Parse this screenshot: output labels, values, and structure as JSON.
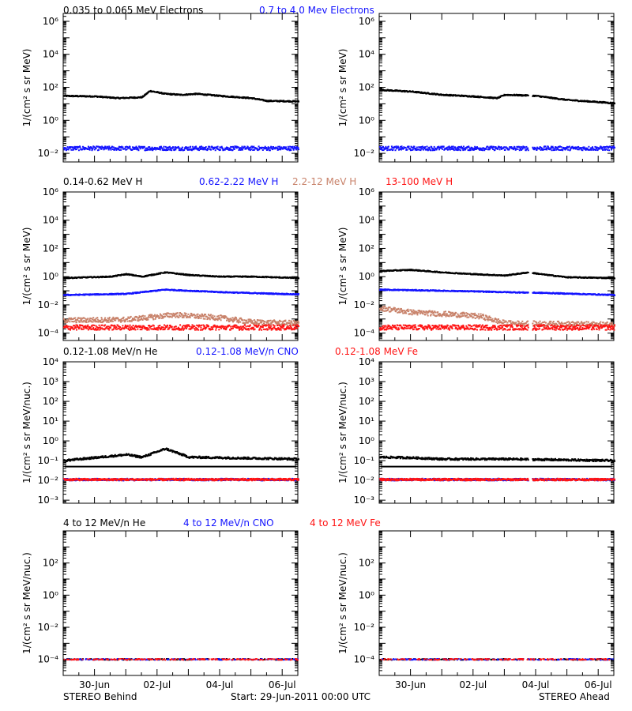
{
  "colors": {
    "black": "#000000",
    "blue": "#1414ff",
    "tan": "#c8826a",
    "red": "#ff1414"
  },
  "footer": {
    "left": "STEREO Behind",
    "center": "Start: 29-Jun-2011 00:00 UTC",
    "right": "STEREO Ahead"
  },
  "time_axis": {
    "start": "2011-06-29 00:00",
    "end": "2011-07-06 12:00",
    "ticks": [
      {
        "date": "2011-06-30",
        "label": "30-Jun"
      },
      {
        "date": "2011-07-02",
        "label": "02-Jul"
      },
      {
        "date": "2011-07-04",
        "label": "04-Jul"
      },
      {
        "date": "2011-07-06",
        "label": "06-Jul"
      }
    ]
  },
  "rows": [
    {
      "legend": [
        {
          "label": "0.035 to 0.065 MeV Electrons",
          "color": "black"
        },
        {
          "label": "0.7 to 4.0 Mev Electrons",
          "color": "blue"
        }
      ]
    },
    {
      "legend": [
        {
          "label": "0.14-0.62 MeV H",
          "color": "black"
        },
        {
          "label": "0.62-2.22 MeV H",
          "color": "blue"
        },
        {
          "label": "2.2-12 MeV H",
          "color": "tan"
        },
        {
          "label": "13-100 MeV H",
          "color": "red"
        }
      ]
    },
    {
      "legend": [
        {
          "label": "0.12-1.08 MeV/n He",
          "color": "black"
        },
        {
          "label": "0.12-1.08 MeV/n CNO",
          "color": "blue"
        },
        {
          "label": "0.12-1.08 MeV Fe",
          "color": "red"
        }
      ]
    },
    {
      "legend": [
        {
          "label": "4 to 12 MeV/n He",
          "color": "black"
        },
        {
          "label": "4 to 12 MeV/n CNO",
          "color": "blue"
        },
        {
          "label": "4 to 12 MeV Fe",
          "color": "red"
        }
      ]
    }
  ],
  "chart_data": [
    {
      "type": "scatter",
      "row": 0,
      "spacecraft": "STEREO Behind",
      "ylabel": "1/(cm² s sr MeV)",
      "yscale": "log",
      "ylim": [
        0.003,
        3000000
      ],
      "yticks": [
        {
          "value": 1000000,
          "label": "10⁶"
        },
        {
          "value": 10000,
          "label": "10⁴"
        },
        {
          "value": 100,
          "label": "10²"
        },
        {
          "value": 1,
          "label": "10⁰"
        },
        {
          "value": 0.01,
          "label": "10⁻²"
        }
      ],
      "series": [
        {
          "color": "black",
          "points": [
            [
              "2011-06-29 00:00",
              30
            ],
            [
              "2011-06-30 00:00",
              28
            ],
            [
              "2011-06-30 18:00",
              22
            ],
            [
              "2011-07-01 12:00",
              25
            ],
            [
              "2011-07-01 18:00",
              60
            ],
            [
              "2011-07-02 06:00",
              40
            ],
            [
              "2011-07-02 18:00",
              35
            ],
            [
              "2011-07-03 06:00",
              40
            ],
            [
              "2011-07-04 00:00",
              30
            ],
            [
              "2011-07-05 00:00",
              22
            ],
            [
              "2011-07-05 12:00",
              15
            ],
            [
              "2011-07-06 12:00",
              14
            ]
          ]
        },
        {
          "color": "blue",
          "points": [
            [
              "2011-06-29 00:00",
              0.02
            ],
            [
              "2011-07-02 00:00",
              0.02
            ],
            [
              "2011-07-06 12:00",
              0.02
            ]
          ]
        }
      ]
    },
    {
      "type": "scatter",
      "row": 0,
      "spacecraft": "STEREO Ahead",
      "ylabel": "1/(cm² s sr MeV)",
      "yscale": "log",
      "ylim": [
        0.003,
        3000000
      ],
      "yticks": [
        {
          "value": 1000000,
          "label": "10⁶"
        },
        {
          "value": 10000,
          "label": "10⁴"
        },
        {
          "value": 100,
          "label": "10²"
        },
        {
          "value": 1,
          "label": "10⁰"
        },
        {
          "value": 0.01,
          "label": "10⁻²"
        }
      ],
      "gaps": [
        [
          "2011-07-03 18:00",
          "2011-07-03 21:00"
        ]
      ],
      "series": [
        {
          "color": "black",
          "points": [
            [
              "2011-06-29 00:00",
              70
            ],
            [
              "2011-06-30 00:00",
              55
            ],
            [
              "2011-07-01 00:00",
              35
            ],
            [
              "2011-07-02 00:00",
              28
            ],
            [
              "2011-07-02 18:00",
              22
            ],
            [
              "2011-07-03 00:00",
              35
            ],
            [
              "2011-07-03 18:00",
              32
            ],
            [
              "2011-07-04 00:00",
              30
            ],
            [
              "2011-07-05 00:00",
              17
            ],
            [
              "2011-07-06 12:00",
              11
            ]
          ]
        },
        {
          "color": "blue",
          "points": [
            [
              "2011-06-29 00:00",
              0.02
            ],
            [
              "2011-07-02 00:00",
              0.02
            ],
            [
              "2011-07-06 12:00",
              0.02
            ]
          ]
        }
      ]
    },
    {
      "type": "scatter",
      "row": 1,
      "spacecraft": "STEREO Behind",
      "ylabel": "1/(cm² s sr MeV)",
      "yscale": "log",
      "ylim": [
        3e-05,
        1000000
      ],
      "yticks": [
        {
          "value": 1000000,
          "label": "10⁶"
        },
        {
          "value": 10000,
          "label": "10⁴"
        },
        {
          "value": 100,
          "label": "10²"
        },
        {
          "value": 1,
          "label": "10⁰"
        },
        {
          "value": 0.01,
          "label": "10⁻²"
        },
        {
          "value": 0.0001,
          "label": "10⁻⁴"
        }
      ],
      "series": [
        {
          "color": "black",
          "points": [
            [
              "2011-06-29 00:00",
              0.8
            ],
            [
              "2011-06-30 12:00",
              1.0
            ],
            [
              "2011-07-01 00:00",
              1.5
            ],
            [
              "2011-07-01 12:00",
              1.0
            ],
            [
              "2011-07-02 06:00",
              2.0
            ],
            [
              "2011-07-03 00:00",
              1.3
            ],
            [
              "2011-07-04 00:00",
              1.0
            ],
            [
              "2011-07-05 00:00",
              1.0
            ],
            [
              "2011-07-06 12:00",
              0.8
            ]
          ]
        },
        {
          "color": "blue",
          "points": [
            [
              "2011-06-29 00:00",
              0.05
            ],
            [
              "2011-07-01 00:00",
              0.06
            ],
            [
              "2011-07-02 06:00",
              0.12
            ],
            [
              "2011-07-03 00:00",
              0.1
            ],
            [
              "2011-07-04 00:00",
              0.08
            ],
            [
              "2011-07-06 12:00",
              0.055
            ]
          ]
        },
        {
          "color": "tan",
          "points": [
            [
              "2011-06-29 00:00",
              0.0008
            ],
            [
              "2011-07-01 00:00",
              0.0009
            ],
            [
              "2011-07-02 00:00",
              0.0015
            ],
            [
              "2011-07-02 12:00",
              0.002
            ],
            [
              "2011-07-04 00:00",
              0.0012
            ],
            [
              "2011-07-05 00:00",
              0.0006
            ],
            [
              "2011-07-06 12:00",
              0.0005
            ]
          ]
        },
        {
          "color": "red",
          "points": [
            [
              "2011-06-29 00:00",
              0.00025
            ],
            [
              "2011-07-06 12:00",
              0.00025
            ]
          ]
        }
      ]
    },
    {
      "type": "scatter",
      "row": 1,
      "spacecraft": "STEREO Ahead",
      "ylabel": "1/(cm² s sr MeV)",
      "yscale": "log",
      "ylim": [
        3e-05,
        1000000
      ],
      "yticks": [
        {
          "value": 1000000,
          "label": "10⁶"
        },
        {
          "value": 10000,
          "label": "10⁴"
        },
        {
          "value": 100,
          "label": "10²"
        },
        {
          "value": 1,
          "label": "10⁰"
        },
        {
          "value": 0.01,
          "label": "10⁻²"
        },
        {
          "value": 0.0001,
          "label": "10⁻⁴"
        }
      ],
      "gaps": [
        [
          "2011-07-03 18:00",
          "2011-07-03 21:00"
        ]
      ],
      "series": [
        {
          "color": "black",
          "points": [
            [
              "2011-06-29 00:00",
              2.5
            ],
            [
              "2011-06-30 00:00",
              3.0
            ],
            [
              "2011-07-01 00:00",
              2.0
            ],
            [
              "2011-07-02 00:00",
              1.5
            ],
            [
              "2011-07-03 00:00",
              1.2
            ],
            [
              "2011-07-03 18:00",
              2.0
            ],
            [
              "2011-07-04 06:00",
              1.4
            ],
            [
              "2011-07-05 00:00",
              0.9
            ],
            [
              "2011-07-06 12:00",
              0.8
            ]
          ]
        },
        {
          "color": "blue",
          "points": [
            [
              "2011-06-29 00:00",
              0.12
            ],
            [
              "2011-07-01 00:00",
              0.1
            ],
            [
              "2011-07-02 00:00",
              0.09
            ],
            [
              "2011-07-03 00:00",
              0.08
            ],
            [
              "2011-07-04 06:00",
              0.07
            ],
            [
              "2011-07-06 12:00",
              0.05
            ]
          ]
        },
        {
          "color": "tan",
          "points": [
            [
              "2011-06-29 00:00",
              0.006
            ],
            [
              "2011-06-30 00:00",
              0.003
            ],
            [
              "2011-07-01 12:00",
              0.002
            ],
            [
              "2011-07-02 06:00",
              0.0015
            ],
            [
              "2011-07-03 00:00",
              0.0005
            ],
            [
              "2011-07-06 12:00",
              0.0004
            ]
          ]
        },
        {
          "color": "red",
          "points": [
            [
              "2011-06-29 00:00",
              0.00025
            ],
            [
              "2011-07-06 12:00",
              0.00025
            ]
          ]
        }
      ]
    },
    {
      "type": "scatter",
      "row": 2,
      "spacecraft": "STEREO Behind",
      "ylabel": "1/(cm² s sr MeV/nuc.)",
      "yscale": "log",
      "ylim": [
        0.0007,
        10000
      ],
      "yticks": [
        {
          "value": 10000,
          "label": "10⁴"
        },
        {
          "value": 1000,
          "label": "10³"
        },
        {
          "value": 100,
          "label": "10²"
        },
        {
          "value": 10,
          "label": "10¹"
        },
        {
          "value": 1,
          "label": "10⁰"
        },
        {
          "value": 0.1,
          "label": "10⁻¹"
        },
        {
          "value": 0.01,
          "label": "10⁻²"
        },
        {
          "value": 0.001,
          "label": "10⁻³"
        }
      ],
      "series": [
        {
          "color": "black",
          "baseline": 0.05,
          "points": [
            [
              "2011-06-29 00:00",
              0.1
            ],
            [
              "2011-07-01 00:00",
              0.2
            ],
            [
              "2011-07-01 12:00",
              0.15
            ],
            [
              "2011-07-02 06:00",
              0.4
            ],
            [
              "2011-07-03 00:00",
              0.15
            ],
            [
              "2011-07-06 12:00",
              0.12
            ]
          ]
        },
        {
          "color": "blue",
          "points": [
            [
              "2011-06-29 00:00",
              0.011
            ],
            [
              "2011-07-06 12:00",
              0.011
            ]
          ]
        },
        {
          "color": "red",
          "points": [
            [
              "2011-06-29 00:00",
              0.011
            ],
            [
              "2011-07-06 12:00",
              0.011
            ]
          ]
        }
      ]
    },
    {
      "type": "scatter",
      "row": 2,
      "spacecraft": "STEREO Ahead",
      "ylabel": "1/(cm² s sr MeV/nuc.)",
      "yscale": "log",
      "ylim": [
        0.0007,
        10000
      ],
      "yticks": [
        {
          "value": 10000,
          "label": "10⁴"
        },
        {
          "value": 1000,
          "label": "10³"
        },
        {
          "value": 100,
          "label": "10²"
        },
        {
          "value": 10,
          "label": "10¹"
        },
        {
          "value": 1,
          "label": "10⁰"
        },
        {
          "value": 0.1,
          "label": "10⁻¹"
        },
        {
          "value": 0.01,
          "label": "10⁻²"
        },
        {
          "value": 0.001,
          "label": "10⁻³"
        }
      ],
      "gaps": [
        [
          "2011-07-03 18:00",
          "2011-07-03 21:00"
        ]
      ],
      "series": [
        {
          "color": "black",
          "baseline": 0.05,
          "points": [
            [
              "2011-06-29 00:00",
              0.15
            ],
            [
              "2011-06-30 00:00",
              0.14
            ],
            [
              "2011-07-01 00:00",
              0.12
            ],
            [
              "2011-07-03 00:00",
              0.12
            ],
            [
              "2011-07-06 12:00",
              0.1
            ]
          ]
        },
        {
          "color": "blue",
          "points": [
            [
              "2011-06-29 00:00",
              0.011
            ],
            [
              "2011-07-06 12:00",
              0.011
            ]
          ]
        },
        {
          "color": "red",
          "points": [
            [
              "2011-06-29 00:00",
              0.011
            ],
            [
              "2011-07-06 12:00",
              0.011
            ]
          ]
        }
      ]
    },
    {
      "type": "scatter",
      "row": 3,
      "spacecraft": "STEREO Behind",
      "ylabel": "1/(cm² s sr MeV/nuc.)",
      "yscale": "log",
      "ylim": [
        1e-05,
        10000
      ],
      "yticks": [
        {
          "value": 100,
          "label": "10²"
        },
        {
          "value": 1,
          "label": "10⁰"
        },
        {
          "value": 0.01,
          "label": "10⁻²"
        },
        {
          "value": 0.0001,
          "label": "10⁻⁴"
        }
      ],
      "series": [
        {
          "color": "black",
          "points": [
            [
              "2011-06-29 00:00",
              0.0001
            ],
            [
              "2011-07-06 12:00",
              0.0001
            ]
          ]
        },
        {
          "color": "blue",
          "points": [
            [
              "2011-06-29 00:00",
              0.0001
            ],
            [
              "2011-07-06 12:00",
              0.0001
            ]
          ]
        },
        {
          "color": "red",
          "points": [
            [
              "2011-06-29 00:00",
              0.0001
            ],
            [
              "2011-07-06 12:00",
              0.0001
            ]
          ]
        }
      ]
    },
    {
      "type": "scatter",
      "row": 3,
      "spacecraft": "STEREO Ahead",
      "ylabel": "1/(cm² s sr MeV/nuc.)",
      "yscale": "log",
      "ylim": [
        1e-05,
        10000
      ],
      "yticks": [
        {
          "value": 100,
          "label": "10²"
        },
        {
          "value": 1,
          "label": "10⁰"
        },
        {
          "value": 0.01,
          "label": "10⁻²"
        },
        {
          "value": 0.0001,
          "label": "10⁻⁴"
        }
      ],
      "series": [
        {
          "color": "black",
          "points": [
            [
              "2011-06-29 00:00",
              0.0001
            ],
            [
              "2011-07-06 12:00",
              0.0001
            ]
          ]
        },
        {
          "color": "blue",
          "points": [
            [
              "2011-06-29 00:00",
              0.0001
            ],
            [
              "2011-07-06 12:00",
              0.0001
            ]
          ]
        },
        {
          "color": "red",
          "points": [
            [
              "2011-06-29 00:00",
              0.0001
            ],
            [
              "2011-07-06 12:00",
              0.0001
            ]
          ]
        }
      ]
    }
  ]
}
